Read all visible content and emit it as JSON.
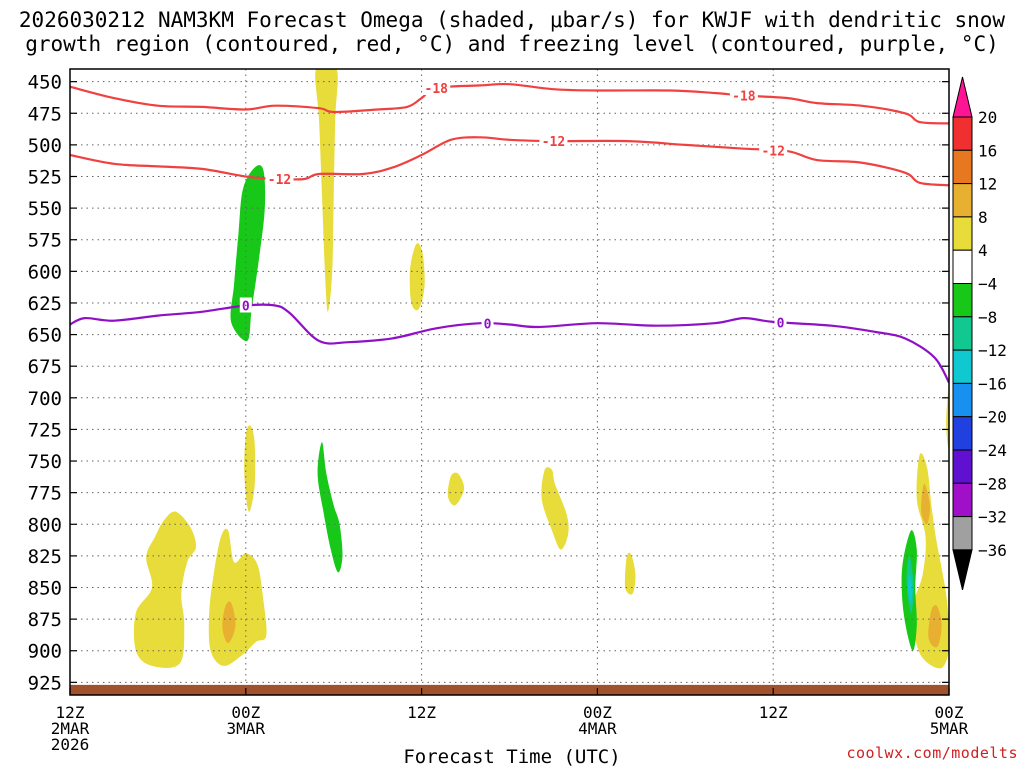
{
  "title_line1": "2026030212 NAM3KM Forecast Omega (shaded, μbar/s) for KWJF with dendritic snow",
  "title_line2": "growth region (contoured, red, °C) and freezing level (contoured, purple, °C)",
  "xlabel": "Forecast Time (UTC)",
  "credit": "coolwx.com/modelts",
  "chart_data": {
    "type": "heatmap",
    "x_hours": [
      0,
      48
    ],
    "y_pressure_range": [
      440,
      935
    ],
    "y_ticks": [
      450,
      475,
      500,
      525,
      550,
      575,
      600,
      625,
      650,
      675,
      700,
      725,
      750,
      775,
      800,
      825,
      850,
      875,
      900,
      925
    ],
    "x_ticks": [
      {
        "hour": 0,
        "lines": [
          "12Z",
          "2MAR",
          "2026"
        ]
      },
      {
        "hour": 12,
        "lines": [
          "00Z",
          "3MAR"
        ]
      },
      {
        "hour": 24,
        "lines": [
          "12Z"
        ]
      },
      {
        "hour": 36,
        "lines": [
          "00Z",
          "4MAR"
        ]
      },
      {
        "hour": 48,
        "lines": [
          "12Z"
        ]
      },
      {
        "hour": 60,
        "lines": [
          "00Z",
          "5MAR"
        ]
      }
    ],
    "x_range_hours": [
      0,
      60
    ],
    "grid": true,
    "colorbar": {
      "labels": [
        "20",
        "16",
        "12",
        "8",
        "4",
        "−4",
        "−8",
        "−12",
        "−16",
        "−20",
        "−24",
        "−28",
        "−32",
        "−36"
      ],
      "colors": [
        "#ff1493",
        "#f03030",
        "#e87820",
        "#e8b030",
        "#e8dc3a",
        "#ffffff",
        "#18c818",
        "#10c890",
        "#10c8d0",
        "#1890f0",
        "#2040e0",
        "#6010d0",
        "#a010c8",
        "#a0a0a0"
      ]
    },
    "contours": [
      {
        "name": "-18",
        "color": "#f04040",
        "label_hours": [
          25.0,
          46.0
        ],
        "points": [
          [
            0,
            454
          ],
          [
            3,
            463
          ],
          [
            6,
            469
          ],
          [
            9,
            470
          ],
          [
            12,
            472
          ],
          [
            14,
            469
          ],
          [
            17,
            471
          ],
          [
            18,
            474
          ],
          [
            21,
            472
          ],
          [
            23,
            470
          ],
          [
            24,
            463
          ],
          [
            25,
            455
          ],
          [
            28,
            453
          ],
          [
            30,
            452
          ],
          [
            33,
            456
          ],
          [
            36,
            457
          ],
          [
            41,
            457
          ],
          [
            44,
            459
          ],
          [
            46,
            461
          ],
          [
            49,
            463
          ],
          [
            51,
            467
          ],
          [
            54,
            469
          ],
          [
            57,
            475
          ],
          [
            58,
            482
          ],
          [
            60,
            483
          ]
        ]
      },
      {
        "name": "-12",
        "color": "#f04040",
        "label_hours": [
          14.3,
          33.0,
          48.0
        ],
        "points": [
          [
            0,
            508
          ],
          [
            3,
            515
          ],
          [
            6,
            517
          ],
          [
            9,
            519
          ],
          [
            12,
            525
          ],
          [
            14,
            527
          ],
          [
            16,
            527
          ],
          [
            17,
            523
          ],
          [
            20,
            523
          ],
          [
            22,
            518
          ],
          [
            24,
            508
          ],
          [
            26,
            496
          ],
          [
            28,
            494
          ],
          [
            30,
            496
          ],
          [
            33,
            497
          ],
          [
            38,
            497
          ],
          [
            42,
            500
          ],
          [
            46,
            503
          ],
          [
            49,
            505
          ],
          [
            51,
            512
          ],
          [
            54,
            514
          ],
          [
            57,
            522
          ],
          [
            58,
            530
          ],
          [
            60,
            532
          ]
        ]
      },
      {
        "name": "0",
        "color": "#9010c8",
        "label_hours": [
          12.0,
          28.5,
          48.5
        ],
        "points": [
          [
            0,
            642
          ],
          [
            1,
            637
          ],
          [
            3,
            639
          ],
          [
            6,
            635
          ],
          [
            9,
            632
          ],
          [
            12,
            627
          ],
          [
            14,
            627
          ],
          [
            15,
            633
          ],
          [
            17,
            655
          ],
          [
            19,
            656
          ],
          [
            22,
            653
          ],
          [
            25,
            645
          ],
          [
            28,
            641
          ],
          [
            30,
            642
          ],
          [
            32,
            644
          ],
          [
            36,
            641
          ],
          [
            40,
            643
          ],
          [
            44,
            641
          ],
          [
            46,
            637
          ],
          [
            48,
            640
          ],
          [
            52,
            643
          ],
          [
            55,
            648
          ],
          [
            57,
            653
          ],
          [
            59,
            668
          ],
          [
            60,
            688
          ]
        ]
      }
    ],
    "omega_regions": [
      {
        "value": 6,
        "color": "#e8dc3a",
        "points": [
          [
            16.8,
            440
          ],
          [
            17.0,
            480
          ],
          [
            17.2,
            540
          ],
          [
            17.4,
            600
          ],
          [
            17.6,
            632
          ],
          [
            17.9,
            600
          ],
          [
            18.0,
            540
          ],
          [
            18.1,
            480
          ],
          [
            18.2,
            440
          ]
        ]
      },
      {
        "value": 6,
        "color": "#e8dc3a",
        "points": [
          [
            23.5,
            582
          ],
          [
            23.2,
            600
          ],
          [
            23.3,
            625
          ],
          [
            23.8,
            630
          ],
          [
            24.2,
            612
          ],
          [
            24.1,
            588
          ],
          [
            23.8,
            578
          ]
        ]
      },
      {
        "value": 6,
        "color": "#e8dc3a",
        "points": [
          [
            12.0,
            730
          ],
          [
            11.9,
            760
          ],
          [
            12.2,
            790
          ],
          [
            12.6,
            770
          ],
          [
            12.6,
            735
          ],
          [
            12.3,
            722
          ]
        ]
      },
      {
        "value": 6,
        "color": "#e8dc3a",
        "points": [
          [
            26.0,
            762
          ],
          [
            25.8,
            778
          ],
          [
            26.3,
            785
          ],
          [
            26.9,
            772
          ],
          [
            26.5,
            760
          ]
        ]
      },
      {
        "value": 6,
        "color": "#e8dc3a",
        "points": [
          [
            32.4,
            757
          ],
          [
            32.2,
            780
          ],
          [
            32.9,
            805
          ],
          [
            33.5,
            820
          ],
          [
            34.0,
            808
          ],
          [
            33.9,
            792
          ],
          [
            33.1,
            768
          ],
          [
            32.9,
            757
          ]
        ]
      },
      {
        "value": 6,
        "color": "#e8dc3a",
        "points": [
          [
            38.0,
            826
          ],
          [
            37.9,
            850
          ],
          [
            38.4,
            855
          ],
          [
            38.6,
            840
          ],
          [
            38.3,
            824
          ]
        ]
      },
      {
        "value": 6,
        "color": "#e8dc3a",
        "points": [
          [
            5.8,
            810
          ],
          [
            5.2,
            826
          ],
          [
            5.6,
            850
          ],
          [
            4.5,
            870
          ],
          [
            4.5,
            900
          ],
          [
            5.6,
            912
          ],
          [
            7.5,
            910
          ],
          [
            7.8,
            880
          ],
          [
            7.6,
            855
          ],
          [
            8.0,
            830
          ],
          [
            8.6,
            818
          ],
          [
            8.2,
            802
          ],
          [
            7.2,
            790
          ],
          [
            6.4,
            797
          ]
        ]
      },
      {
        "value": 6,
        "color": "#e8dc3a",
        "points": [
          [
            10.3,
            810
          ],
          [
            9.8,
            840
          ],
          [
            9.5,
            870
          ],
          [
            9.6,
            900
          ],
          [
            10.5,
            912
          ],
          [
            11.8,
            903
          ],
          [
            12.7,
            893
          ],
          [
            13.4,
            888
          ],
          [
            13.2,
            860
          ],
          [
            12.8,
            832
          ],
          [
            12.0,
            823
          ],
          [
            11.2,
            830
          ],
          [
            10.8,
            805
          ]
        ]
      },
      {
        "value": 6,
        "color": "#e8dc3a",
        "points": [
          [
            58.0,
            745
          ],
          [
            57.8,
            780
          ],
          [
            58.4,
            810
          ],
          [
            58.2,
            840
          ],
          [
            57.5,
            868
          ],
          [
            58.0,
            902
          ],
          [
            59.4,
            914
          ],
          [
            60.0,
            900
          ],
          [
            60.0,
            880
          ],
          [
            59.8,
            855
          ],
          [
            59.5,
            835
          ],
          [
            59.1,
            810
          ],
          [
            58.8,
            785
          ],
          [
            58.5,
            755
          ]
        ]
      },
      {
        "value": 6,
        "color": "#e8dc3a",
        "points": [
          [
            60.0,
            692
          ],
          [
            59.8,
            720
          ],
          [
            60.0,
            740
          ]
        ]
      },
      {
        "value": 10,
        "color": "#e8b030",
        "points": [
          [
            10.6,
            865
          ],
          [
            10.4,
            882
          ],
          [
            10.8,
            894
          ],
          [
            11.3,
            880
          ],
          [
            11.0,
            862
          ]
        ]
      },
      {
        "value": 10,
        "color": "#e8b030",
        "points": [
          [
            58.3,
            768
          ],
          [
            58.1,
            790
          ],
          [
            58.5,
            800
          ],
          [
            58.7,
            785
          ]
        ]
      },
      {
        "value": 10,
        "color": "#e8b030",
        "points": [
          [
            58.8,
            868
          ],
          [
            58.6,
            890
          ],
          [
            59.2,
            897
          ],
          [
            59.5,
            880
          ],
          [
            59.2,
            865
          ]
        ]
      },
      {
        "value": -6,
        "color": "#18c818",
        "points": [
          [
            12.6,
            518
          ],
          [
            11.8,
            535
          ],
          [
            11.5,
            570
          ],
          [
            11.2,
            610
          ],
          [
            11.0,
            640
          ],
          [
            12.1,
            655
          ],
          [
            12.4,
            630
          ],
          [
            12.9,
            590
          ],
          [
            13.3,
            550
          ],
          [
            13.2,
            520
          ]
        ]
      },
      {
        "value": -6,
        "color": "#18c818",
        "points": [
          [
            17.2,
            735
          ],
          [
            16.9,
            760
          ],
          [
            17.3,
            790
          ],
          [
            17.8,
            820
          ],
          [
            18.3,
            838
          ],
          [
            18.6,
            825
          ],
          [
            18.4,
            800
          ],
          [
            18.0,
            785
          ],
          [
            17.5,
            760
          ]
        ]
      },
      {
        "value": -6,
        "color": "#18c818",
        "points": [
          [
            57.4,
            805
          ],
          [
            56.8,
            835
          ],
          [
            56.9,
            870
          ],
          [
            57.5,
            900
          ],
          [
            57.8,
            880
          ],
          [
            57.7,
            850
          ],
          [
            57.8,
            820
          ]
        ]
      },
      {
        "value": -10,
        "color": "#10c890",
        "points": [
          [
            57.3,
            825
          ],
          [
            57.1,
            845
          ],
          [
            57.4,
            870
          ],
          [
            57.6,
            850
          ]
        ]
      },
      {
        "value": -10,
        "color": "#10c8d0",
        "points": [
          [
            57.3,
            840
          ],
          [
            57.2,
            852
          ],
          [
            57.4,
            862
          ],
          [
            57.5,
            850
          ]
        ]
      }
    ],
    "ground": {
      "color": "#a0522d"
    }
  }
}
